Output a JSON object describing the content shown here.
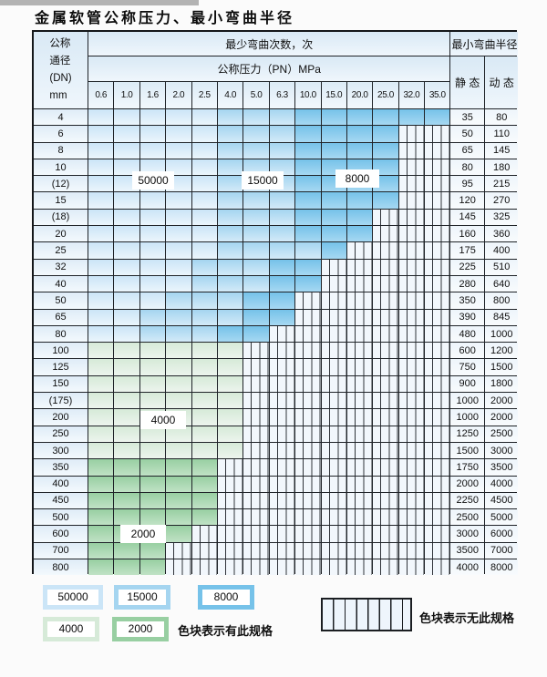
{
  "page": {
    "title": "金属软管公称压力、最小弯曲半径"
  },
  "table": {
    "corner_lines": [
      "公称",
      "通径",
      "(DN)",
      "mm"
    ],
    "cycles_header": "最少弯曲次数，次",
    "pressure_header": "公称压力（PN）MPa",
    "pressure_values": [
      "0.6",
      "1.0",
      "1.6",
      "2.0",
      "2.5",
      "4.0",
      "5.0",
      "6.3",
      "10.0",
      "15.0",
      "20.0",
      "25.0",
      "32.0",
      "35.0"
    ],
    "radius_header": "最小弯曲半径",
    "static_header": "静 态",
    "dynamic_header": "动 态",
    "rows": [
      {
        "dn": "4",
        "zones": "AAAAABBBCCCCCC",
        "static": "35",
        "dynamic": "80"
      },
      {
        "dn": "6",
        "zones": "AAAAABBBCCCCNN",
        "static": "50",
        "dynamic": "110"
      },
      {
        "dn": "8",
        "zones": "AAAAABBBCCCCNN",
        "static": "65",
        "dynamic": "145"
      },
      {
        "dn": "10",
        "zones": "AAAAABBBCCCCNN",
        "static": "80",
        "dynamic": "180"
      },
      {
        "dn": "(12)",
        "zones": "AAAAABBBCCCCNN",
        "static": "95",
        "dynamic": "215"
      },
      {
        "dn": "15",
        "zones": "AAAAABBBCCCCNN",
        "static": "120",
        "dynamic": "270"
      },
      {
        "dn": "(18)",
        "zones": "AAAAABBBCCCNNN",
        "static": "145",
        "dynamic": "325"
      },
      {
        "dn": "20",
        "zones": "AAAAABBBCCCNNN",
        "static": "160",
        "dynamic": "360"
      },
      {
        "dn": "25",
        "zones": "AAAAABBBBCNNNN",
        "static": "175",
        "dynamic": "400"
      },
      {
        "dn": "32",
        "zones": "AAAABBBCCNNNNN",
        "static": "225",
        "dynamic": "510"
      },
      {
        "dn": "40",
        "zones": "AAAABBBCCNNNNN",
        "static": "280",
        "dynamic": "640"
      },
      {
        "dn": "50",
        "zones": "AAABBBCCNNNNNN",
        "static": "350",
        "dynamic": "800"
      },
      {
        "dn": "65",
        "zones": "AABBBBCCNNNNNN",
        "static": "390",
        "dynamic": "845"
      },
      {
        "dn": "80",
        "zones": "AABBBCCNNNNNNN",
        "static": "480",
        "dynamic": "1000"
      },
      {
        "dn": "100",
        "zones": "DDDDDDNNNNNNNN",
        "static": "600",
        "dynamic": "1200"
      },
      {
        "dn": "125",
        "zones": "DDDDDDNNNNNNNN",
        "static": "750",
        "dynamic": "1500"
      },
      {
        "dn": "150",
        "zones": "DDDDDDNNNNNNNN",
        "static": "900",
        "dynamic": "1800"
      },
      {
        "dn": "(175)",
        "zones": "DDDDDDNNNNNNNN",
        "static": "1000",
        "dynamic": "2000"
      },
      {
        "dn": "200",
        "zones": "DDDDDDNNNNNNNN",
        "static": "1000",
        "dynamic": "2000"
      },
      {
        "dn": "250",
        "zones": "DDDDDDNNNNNNNN",
        "static": "1250",
        "dynamic": "2500"
      },
      {
        "dn": "300",
        "zones": "DDDDDDNNNNNNNN",
        "static": "1500",
        "dynamic": "3000"
      },
      {
        "dn": "350",
        "zones": "EEEEENNNNNNNNN",
        "static": "1750",
        "dynamic": "3500"
      },
      {
        "dn": "400",
        "zones": "EEEEENNNNNNNNN",
        "static": "2000",
        "dynamic": "4000"
      },
      {
        "dn": "450",
        "zones": "EEEEENNNNNNNNN",
        "static": "2250",
        "dynamic": "4500"
      },
      {
        "dn": "500",
        "zones": "EEEEENNNNNNNNN",
        "static": "2500",
        "dynamic": "5000"
      },
      {
        "dn": "600",
        "zones": "EEEENNNNNNNNNN",
        "static": "3000",
        "dynamic": "6000"
      },
      {
        "dn": "700",
        "zones": "EEENNNNNNNNNNN",
        "static": "3500",
        "dynamic": "7000"
      },
      {
        "dn": "800",
        "zones": "EEENNNNNNNNNNN",
        "static": "4000",
        "dynamic": "8000"
      }
    ]
  },
  "zones": {
    "A": {
      "label": "50000",
      "color": "#cbe5f7",
      "color_light": "#ebf5fc"
    },
    "B": {
      "label": "15000",
      "color": "#a5d5f0",
      "color_light": "#d3eaf8"
    },
    "C": {
      "label": "8000",
      "color": "#76c2e9",
      "color_light": "#a6d8f2"
    },
    "D": {
      "label": "4000",
      "color": "#d6ead8",
      "color_light": "#ecf4ed"
    },
    "E": {
      "label": "2000",
      "color": "#98cfa2",
      "color_light": "#c0e2c5"
    }
  },
  "legend": {
    "has_spec_text": "色块表示有此规格",
    "no_spec_text": "色块表示无此规格"
  }
}
